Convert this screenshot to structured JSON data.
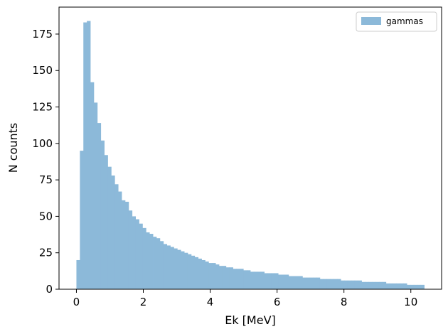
{
  "chart_data": {
    "type": "bar",
    "subtype": "histogram",
    "title": "",
    "xlabel": "Ek [MeV]",
    "ylabel": "N counts",
    "xlim": [
      -0.52,
      10.92
    ],
    "ylim": [
      0,
      193.5
    ],
    "xticks": [
      0,
      2,
      4,
      6,
      8,
      10
    ],
    "xtick_labels": [
      "0",
      "2",
      "4",
      "6",
      "8",
      "10"
    ],
    "yticks": [
      0,
      25,
      50,
      75,
      100,
      125,
      150,
      175
    ],
    "ytick_labels": [
      "0",
      "25",
      "50",
      "75",
      "100",
      "125",
      "150",
      "175"
    ],
    "grid": false,
    "legend_position": "upper right",
    "bin_start": 0,
    "bin_width": 0.104,
    "series": [
      {
        "name": "gammas",
        "color": "#8cb9d9",
        "values": [
          20,
          95,
          183,
          184,
          142,
          128,
          114,
          102,
          92,
          84,
          78,
          72,
          67,
          61,
          60,
          54,
          50,
          48,
          45,
          42,
          39,
          38,
          36,
          35,
          33,
          31,
          30,
          29,
          28,
          27,
          26,
          25,
          24,
          23,
          22,
          21,
          20,
          19,
          18,
          18,
          17,
          16,
          16,
          15,
          15,
          14,
          14,
          14,
          13,
          13,
          12,
          12,
          12,
          12,
          11,
          11,
          11,
          11,
          10,
          10,
          10,
          9,
          9,
          9,
          9,
          8,
          8,
          8,
          8,
          8,
          7,
          7,
          7,
          7,
          7,
          7,
          6,
          6,
          6,
          6,
          6,
          6,
          5,
          5,
          5,
          5,
          5,
          5,
          5,
          4,
          4,
          4,
          4,
          4,
          4,
          3,
          3,
          3,
          3,
          3
        ]
      }
    ]
  }
}
